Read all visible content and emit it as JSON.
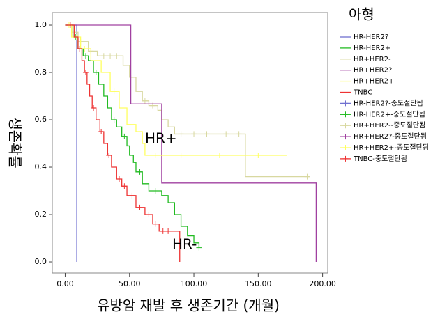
{
  "chart_data": {
    "type": "line",
    "step": true,
    "y_label": "생존확률",
    "x_label": "유방암 재발 후 생존기간 (개월)",
    "legend_title": "아형",
    "annotations": [
      "HR+",
      "HR-"
    ],
    "xlim": [
      -10,
      204
    ],
    "ylim": [
      -0.047,
      1.053
    ],
    "xticks": [
      {
        "value": 0,
        "label": "0.00"
      },
      {
        "value": 50,
        "label": "50.00"
      },
      {
        "value": 100,
        "label": "100.00"
      },
      {
        "value": 150,
        "label": "150.00"
      },
      {
        "value": 200,
        "label": "200.00"
      }
    ],
    "yticks": [
      {
        "value": 0,
        "label": "0.0"
      },
      0.2,
      0.4,
      0.6,
      0.8,
      {
        "value": 1,
        "label": "1.0"
      }
    ],
    "series": [
      {
        "name": "HR-HER2?",
        "censored_name": "HR-HER2?-중도절단됨",
        "color": "#7070d0",
        "x": [
          0,
          9
        ],
        "values": [
          1.0,
          0.0
        ],
        "censored": []
      },
      {
        "name": "HR-HER2+",
        "censored_name": "HR-HER2+-중도절단됨",
        "color": "#22bb22",
        "x": [
          0,
          6,
          10,
          14,
          18,
          22,
          26,
          30,
          33,
          36,
          40,
          44,
          48,
          50,
          53,
          55,
          60,
          65,
          75,
          80,
          85,
          90,
          95,
          100,
          104
        ],
        "values": [
          1.0,
          0.95,
          0.9,
          0.87,
          0.85,
          0.8,
          0.75,
          0.7,
          0.65,
          0.6,
          0.57,
          0.53,
          0.49,
          0.45,
          0.42,
          0.38,
          0.33,
          0.3,
          0.28,
          0.25,
          0.2,
          0.15,
          0.11,
          0.08,
          0.06
        ],
        "censored": [
          8,
          16,
          24,
          38,
          46,
          58,
          70,
          104
        ]
      },
      {
        "name": "HR+HER2-",
        "censored_name": "HR+HER2--중도절단됨",
        "color": "#d8d8a0",
        "x": [
          0,
          5,
          10,
          18,
          25,
          45,
          50,
          55,
          60,
          65,
          72,
          75,
          80,
          85,
          140,
          190
        ],
        "values": [
          1.0,
          0.97,
          0.93,
          0.89,
          0.87,
          0.83,
          0.78,
          0.72,
          0.68,
          0.66,
          0.64,
          0.6,
          0.57,
          0.54,
          0.36,
          0.36
        ],
        "censored": [
          12,
          20,
          30,
          35,
          40,
          52,
          62,
          68,
          90,
          100,
          110,
          125,
          135,
          188
        ]
      },
      {
        "name": "HR+HER2?",
        "censored_name": "HR+HER2?-중도절단됨",
        "color": "#a040a0",
        "x": [
          0,
          51,
          75,
          195
        ],
        "values": [
          1.0,
          0.667,
          0.333,
          0.0
        ],
        "censored": []
      },
      {
        "name": "HR+HER2+",
        "censored_name": "HR+HER2+-중도절단됨",
        "color": "#ffff60",
        "x": [
          0,
          5,
          12,
          20,
          28,
          35,
          42,
          48,
          55,
          60,
          62,
          172
        ],
        "values": [
          1.0,
          0.95,
          0.9,
          0.85,
          0.8,
          0.72,
          0.65,
          0.58,
          0.55,
          0.5,
          0.45,
          0.45
        ],
        "censored": [
          3,
          9,
          15,
          38,
          70,
          90,
          120,
          150
        ]
      },
      {
        "name": "TNBC",
        "censored_name": "TNBC-중도절단됨",
        "color": "#ee3333",
        "x": [
          0,
          7,
          10,
          13,
          15,
          17,
          19,
          21,
          24,
          27,
          30,
          33,
          36,
          40,
          44,
          48,
          55,
          62,
          68,
          73,
          89
        ],
        "values": [
          1.0,
          0.95,
          0.9,
          0.85,
          0.8,
          0.75,
          0.7,
          0.65,
          0.6,
          0.55,
          0.5,
          0.45,
          0.4,
          0.35,
          0.32,
          0.28,
          0.23,
          0.2,
          0.16,
          0.13,
          0.0
        ],
        "censored": [
          4,
          11,
          16,
          22,
          28,
          34,
          42,
          46,
          52,
          58,
          65,
          70,
          76,
          80
        ]
      }
    ]
  }
}
